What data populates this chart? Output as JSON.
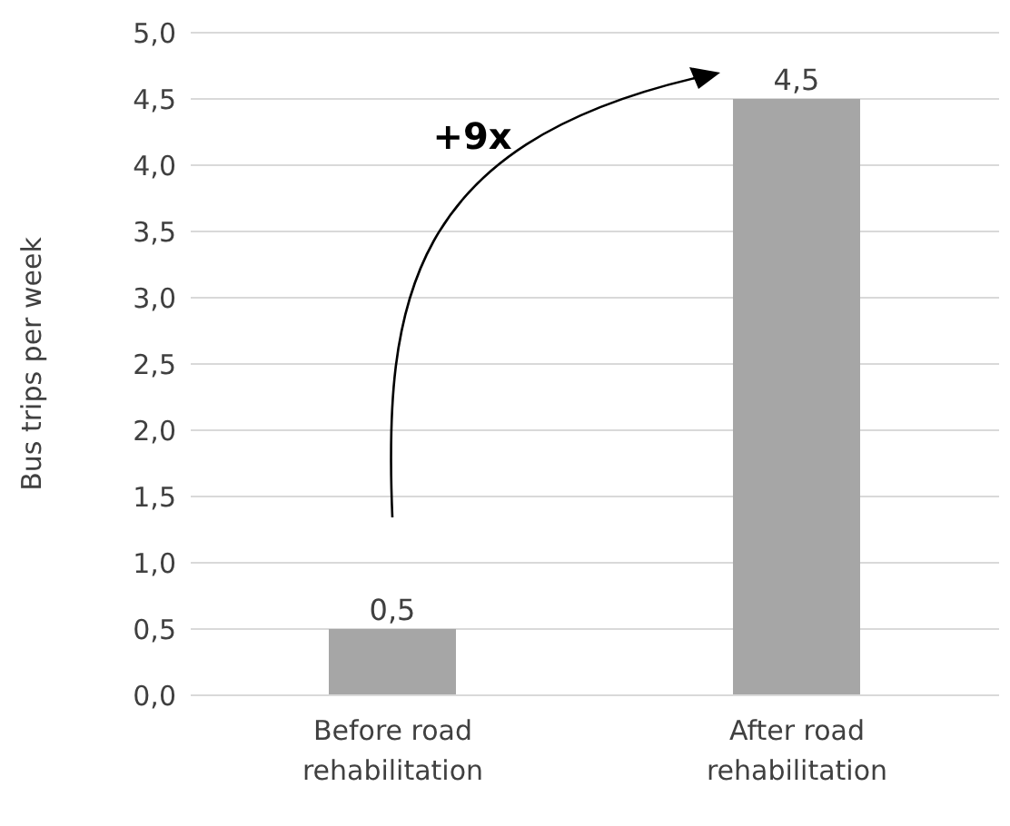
{
  "chart_data": {
    "type": "bar",
    "ylabel": "Bus trips per week",
    "categories": [
      "Before road rehabilitation",
      "After road rehabilitation"
    ],
    "values": [
      0.5,
      4.5
    ],
    "value_labels": [
      "0,5",
      "4,5"
    ],
    "color": "#a6a6a6",
    "ylim": [
      0,
      5
    ],
    "yticks": [
      {
        "value": 0,
        "label": "0,0"
      },
      {
        "value": 0.5,
        "label": "0,5"
      },
      {
        "value": 1,
        "label": "1,0"
      },
      {
        "value": 1.5,
        "label": "1,5"
      },
      {
        "value": 2,
        "label": "2,0"
      },
      {
        "value": 2.5,
        "label": "2,5"
      },
      {
        "value": 3,
        "label": "3,0"
      },
      {
        "value": 3.5,
        "label": "3,5"
      },
      {
        "value": 4,
        "label": "4,0"
      },
      {
        "value": 4.5,
        "label": "4,5"
      },
      {
        "value": 5,
        "label": "5,0"
      }
    ],
    "grid": "y",
    "annotations": [
      "+9x"
    ]
  }
}
